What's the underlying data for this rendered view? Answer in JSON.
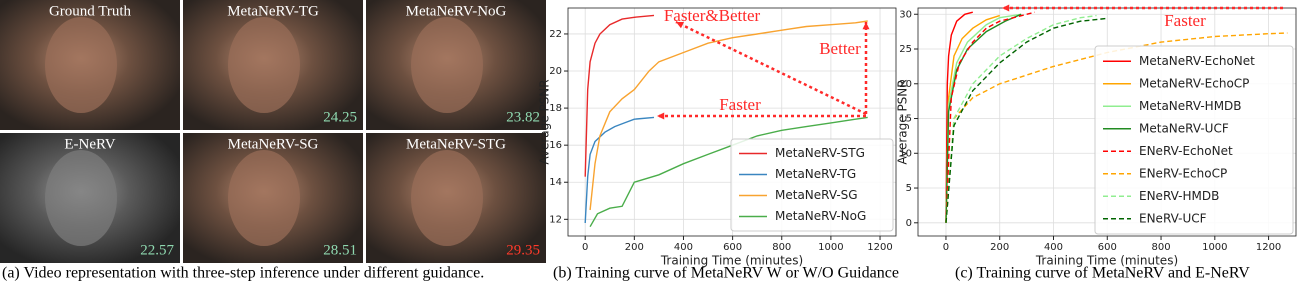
{
  "panel_a": {
    "tiles": [
      {
        "label": "Ground Truth"
      },
      {
        "label": "MetaNeRV-TG",
        "psnr": 24.25,
        "psnr_color": "#8fd9b0"
      },
      {
        "label": "MetaNeRV-NoG",
        "psnr": 23.82,
        "psnr_color": "#8fd9b0"
      },
      {
        "label": "E-NeRV",
        "psnr": 22.57,
        "psnr_color": "#8fd9b0"
      },
      {
        "label": "MetaNeRV-SG",
        "psnr": 28.51,
        "psnr_color": "#8fd9b0"
      },
      {
        "label": "MetaNeRV-STG",
        "psnr": 29.35,
        "psnr_color": "#ff3a2a"
      }
    ],
    "caption": "(a) Video representation with three-step inference under different guidance."
  },
  "chart_data": [
    {
      "type": "line",
      "caption": "(b) Training curve of MetaNeRV W or W/O Guidance",
      "x_label": "Training Time (minutes)",
      "y_label": "Average PSNR",
      "xlim": [
        -70,
        1265
      ],
      "ylim": [
        11.1,
        23.4
      ],
      "xticks": [
        0,
        200,
        400,
        600,
        800,
        1000,
        1200
      ],
      "yticks": [
        12,
        14,
        16,
        18,
        20,
        22
      ],
      "grid": true,
      "legend": "lower right",
      "annotations": [
        "Faster&Better",
        "Better",
        "Faster"
      ],
      "series": [
        {
          "name": "MetaNeRV-STG",
          "color": "#e8292a",
          "dash": false,
          "x": [
            0,
            10,
            20,
            40,
            60,
            100,
            150,
            200,
            280
          ],
          "values": [
            14.3,
            19,
            20.5,
            21.5,
            22,
            22.5,
            22.8,
            22.9,
            23.0
          ]
        },
        {
          "name": "MetaNeRV-TG",
          "color": "#3a86c0",
          "dash": false,
          "x": [
            0,
            10,
            20,
            40,
            80,
            120,
            160,
            200,
            280
          ],
          "values": [
            11.8,
            14.3,
            15.5,
            16.2,
            16.7,
            17.0,
            17.2,
            17.4,
            17.5
          ]
        },
        {
          "name": "MetaNeRV-SG",
          "color": "#f8a330",
          "dash": false,
          "x": [
            20,
            40,
            60,
            100,
            150,
            200,
            260,
            300,
            400,
            500,
            600,
            700,
            800,
            900,
            1000,
            1100,
            1150
          ],
          "values": [
            12.5,
            15,
            16.5,
            17.8,
            18.5,
            19,
            20,
            20.5,
            21,
            21.5,
            21.8,
            22,
            22.2,
            22.4,
            22.5,
            22.6,
            22.7
          ]
        },
        {
          "name": "MetaNeRV-NoG",
          "color": "#4aad4a",
          "dash": false,
          "x": [
            20,
            50,
            100,
            150,
            200,
            300,
            400,
            500,
            600,
            700,
            800,
            900,
            1000,
            1100,
            1150
          ],
          "values": [
            11.6,
            12.3,
            12.6,
            12.7,
            14.0,
            14.4,
            15.0,
            15.5,
            16.0,
            16.5,
            16.8,
            17.0,
            17.2,
            17.4,
            17.5
          ]
        }
      ]
    },
    {
      "type": "line",
      "caption": "(c) Training curve of MetaNeRV and E-NeRV",
      "x_label": "Training Time (minutes)",
      "y_label": "Average PSNR",
      "xlim": [
        -104,
        1302
      ],
      "ylim": [
        -1.9,
        30.9
      ],
      "xticks": [
        0,
        200,
        400,
        600,
        800,
        1000,
        1200
      ],
      "yticks": [
        0,
        5,
        10,
        15,
        20,
        25,
        30
      ],
      "grid": true,
      "legend": "right",
      "annotations": [
        "Faster"
      ],
      "series": [
        {
          "name": "MetaNeRV-EchoNet",
          "color": "#ff0000",
          "dash": false,
          "x": [
            0,
            5,
            10,
            20,
            40,
            70,
            100
          ],
          "values": [
            0,
            20,
            24,
            27,
            29,
            30,
            30.3
          ]
        },
        {
          "name": "MetaNeRV-EchoCP",
          "color": "#ffa500",
          "dash": false,
          "x": [
            0,
            10,
            30,
            60,
            100,
            150,
            200
          ],
          "values": [
            0,
            18,
            24,
            26.5,
            28,
            29.2,
            29.8
          ]
        },
        {
          "name": "MetaNeRV-HMDB",
          "color": "#90ee90",
          "dash": false,
          "x": [
            0,
            10,
            40,
            80,
            150,
            200,
            280
          ],
          "values": [
            0,
            17,
            23,
            26,
            28.5,
            29.5,
            30
          ]
        },
        {
          "name": "MetaNeRV-UCF",
          "color": "#228b22",
          "dash": false,
          "x": [
            0,
            10,
            40,
            80,
            150,
            220,
            280
          ],
          "values": [
            0,
            16,
            22,
            25,
            27.5,
            29,
            30
          ]
        },
        {
          "name": "ENeRV-EchoNet",
          "color": "#ff0000",
          "dash": true,
          "x": [
            0,
            20,
            50,
            100,
            150,
            200,
            300,
            330
          ],
          "values": [
            0,
            18,
            23,
            26,
            28,
            29,
            30,
            30.3
          ]
        },
        {
          "name": "ENeRV-EchoCP",
          "color": "#ffa500",
          "dash": true,
          "x": [
            0,
            30,
            100,
            200,
            400,
            600,
            800,
            1000,
            1200,
            1270
          ],
          "values": [
            0,
            15,
            18,
            20,
            22.5,
            24.5,
            26,
            26.8,
            27.2,
            27.3
          ]
        },
        {
          "name": "ENeRV-HMDB",
          "color": "#90ee90",
          "dash": true,
          "x": [
            0,
            30,
            100,
            200,
            300,
            400,
            500,
            560
          ],
          "values": [
            0,
            15,
            20,
            24,
            26.5,
            28.5,
            29.5,
            29.8
          ]
        },
        {
          "name": "ENeRV-UCF",
          "color": "#006400",
          "dash": true,
          "x": [
            0,
            30,
            100,
            200,
            300,
            400,
            500,
            600
          ],
          "values": [
            0,
            14,
            19,
            23,
            26,
            28,
            29,
            29.4
          ]
        }
      ]
    }
  ]
}
